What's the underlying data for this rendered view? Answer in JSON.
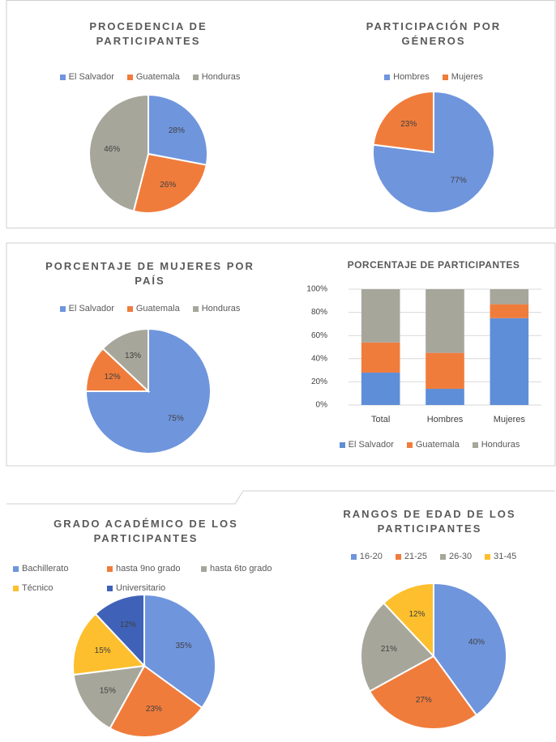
{
  "chart_data": [
    {
      "type": "pie",
      "title": "PROCEDENCIA DE PARTICIPANTES",
      "categories": [
        "El Salvador",
        "Guatemala",
        "Honduras"
      ],
      "values": [
        28,
        26,
        46
      ],
      "value_labels": [
        "28%",
        "26%",
        "46%"
      ],
      "colors": [
        "#6f95dd",
        "#f07c3c",
        "#a7a69b"
      ]
    },
    {
      "type": "pie",
      "title": "PARTICIPACIÓN POR GÉNEROS",
      "categories": [
        "Hombres",
        "Mujeres"
      ],
      "values": [
        77,
        23
      ],
      "value_labels": [
        "77%",
        "23%"
      ],
      "colors": [
        "#6f95dd",
        "#f07c3c"
      ]
    },
    {
      "type": "pie",
      "title": "PORCENTAJE DE MUJERES POR PAÍS",
      "categories": [
        "El Salvador",
        "Guatemala",
        "Honduras"
      ],
      "values": [
        75,
        12,
        13
      ],
      "value_labels": [
        "75%",
        "12%",
        "13%"
      ],
      "colors": [
        "#6f95dd",
        "#f07c3c",
        "#a7a69b"
      ]
    },
    {
      "type": "stacked_bar",
      "title": "PORCENTAJE DE PARTICIPANTES",
      "categories": [
        "Total",
        "Hombres",
        "Mujeres"
      ],
      "series": [
        {
          "name": "El Salvador",
          "color": "#5f8ed8",
          "values": [
            28,
            14,
            75
          ]
        },
        {
          "name": "Guatemala",
          "color": "#f07c3c",
          "values": [
            26,
            31,
            12
          ]
        },
        {
          "name": "Honduras",
          "color": "#a7a69b",
          "values": [
            46,
            55,
            13
          ]
        }
      ],
      "ylim": [
        0,
        100
      ],
      "yticks": [
        {
          "value": 0,
          "label": "0%"
        },
        {
          "value": 20,
          "label": "20%"
        },
        {
          "value": 40,
          "label": "40%"
        },
        {
          "value": 60,
          "label": "60%"
        },
        {
          "value": 80,
          "label": "80%"
        },
        {
          "value": 100,
          "label": "100%"
        }
      ],
      "grid": true
    },
    {
      "type": "pie",
      "title": "GRADO ACADÉMICO DE LOS PARTICIPANTES",
      "categories": [
        "Bachillerato",
        "hasta 9no grado",
        "hasta 6to grado",
        "Técnico",
        "Universitario"
      ],
      "values": [
        35,
        23,
        15,
        15,
        12
      ],
      "value_labels": [
        "35%",
        "23%",
        "15%",
        "15%",
        "12%"
      ],
      "colors": [
        "#6f95dd",
        "#f07c3c",
        "#a7a69b",
        "#fdbf2d",
        "#3f62b8"
      ]
    },
    {
      "type": "pie",
      "title": "RANGOS DE EDAD DE LOS PARTICIPANTES",
      "categories": [
        "16-20",
        "21-25",
        "26-30",
        "31-45"
      ],
      "values": [
        40,
        27,
        21,
        12
      ],
      "value_labels": [
        "40%",
        "27%",
        "21%",
        "12%"
      ],
      "colors": [
        "#6f95dd",
        "#f07c3c",
        "#a7a69b",
        "#fdbf2d"
      ]
    }
  ]
}
